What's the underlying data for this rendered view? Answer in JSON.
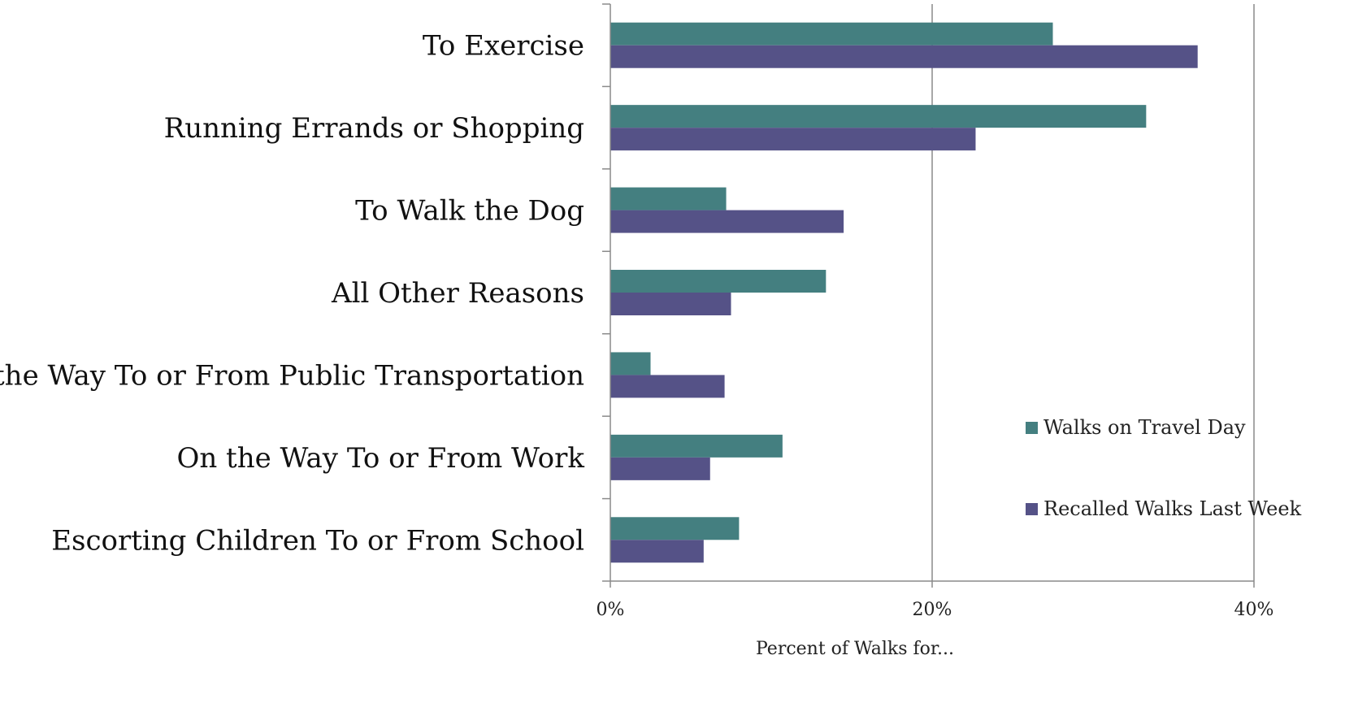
{
  "chart_data": {
    "type": "bar",
    "orientation": "horizontal",
    "categories": [
      "To Exercise",
      "Running Errands or Shopping",
      "To Walk the Dog",
      "All Other Reasons",
      "On the Way To or From Public Transportation",
      "On the Way To or From Work",
      "Escorting Children To or From School"
    ],
    "series": [
      {
        "name": "Walks on Travel Day",
        "color": "#447f80",
        "values": [
          27.5,
          33.3,
          7.2,
          13.4,
          2.5,
          10.7,
          8.0
        ]
      },
      {
        "name": "Recalled Walks Last Week",
        "color": "#555287",
        "values": [
          36.5,
          22.7,
          14.5,
          7.5,
          7.1,
          6.2,
          5.8
        ]
      }
    ],
    "xlim": [
      0,
      40
    ],
    "x_ticks": [
      "0%",
      "20%",
      "40%"
    ],
    "x_tick_values": [
      0,
      20,
      40
    ],
    "xlabel": "Percent of Walks for...",
    "ylabel": "",
    "title": "",
    "grid": true,
    "legend_position": "right"
  }
}
